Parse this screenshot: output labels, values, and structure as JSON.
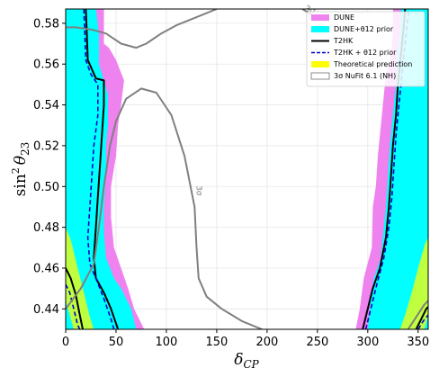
{
  "chart_data": {
    "type": "area",
    "xlabel": "δ_CP",
    "xlabel_main": "δ",
    "xlabel_sub": "CP",
    "ylabel": "sin² θ23",
    "ylabel_main": "sin",
    "ylabel_sup": "2",
    "ylabel_theta": "θ",
    "ylabel_sub": "23",
    "xlim": [
      0,
      360
    ],
    "ylim": [
      0.43,
      0.587
    ],
    "x_ticks": [
      0,
      50,
      100,
      150,
      200,
      250,
      300,
      350
    ],
    "y_ticks": [
      0.44,
      0.46,
      0.48,
      0.5,
      0.52,
      0.54,
      0.56,
      0.58
    ],
    "x_tick_labels": [
      "0",
      "50",
      "100",
      "150",
      "200",
      "250",
      "300",
      "350"
    ],
    "y_tick_labels": [
      "0.44",
      "0.46",
      "0.48",
      "0.50",
      "0.52",
      "0.54",
      "0.56",
      "0.58"
    ],
    "grid": true,
    "legend_position": "top-right",
    "colors": {
      "dune": "#ee82ee",
      "dune_prior": "#00ffff",
      "t2hk": "#000000",
      "t2hk_prior": "#0000cc",
      "theory": "#ffff00",
      "nufit": "#808080"
    },
    "legend": [
      {
        "label": "DUNE",
        "kind": "patch",
        "color": "#ee82ee"
      },
      {
        "label": "DUNE+θ12 prior",
        "kind": "patch",
        "color": "#00ffff"
      },
      {
        "label": "T2HK",
        "kind": "line",
        "color": "#000000"
      },
      {
        "label": "T2HK + θ12 prior",
        "kind": "dashed",
        "color": "#0000cc"
      },
      {
        "label": "Theoretical prediction",
        "kind": "patch",
        "color": "#ffff00"
      },
      {
        "label": "3σ NuFit 6.1 (NH)",
        "kind": "empty",
        "color": "#808080"
      }
    ],
    "contour_labels": [
      "3σ",
      "3σ"
    ],
    "series": [
      {
        "name": "DUNE",
        "regions": [
          [
            [
              0,
              0.43
            ],
            [
              0,
              0.587
            ],
            [
              38,
              0.587
            ],
            [
              38,
              0.57
            ],
            [
              43,
              0.568
            ],
            [
              50,
              0.562
            ],
            [
              58,
              0.552
            ],
            [
              55,
              0.54
            ],
            [
              52,
              0.53
            ],
            [
              50,
              0.515
            ],
            [
              45,
              0.5
            ],
            [
              45,
              0.485
            ],
            [
              48,
              0.47
            ],
            [
              55,
              0.46
            ],
            [
              62,
              0.45
            ],
            [
              68,
              0.44
            ],
            [
              78,
              0.43
            ]
          ],
          [
            [
              288,
              0.43
            ],
            [
              292,
              0.44
            ],
            [
              296,
              0.455
            ],
            [
              304,
              0.47
            ],
            [
              305,
              0.49
            ],
            [
              308,
              0.5
            ],
            [
              310,
              0.515
            ],
            [
              313,
              0.53
            ],
            [
              315,
              0.54
            ],
            [
              318,
              0.555
            ],
            [
              322,
              0.56
            ],
            [
              325,
              0.575
            ],
            [
              325,
              0.587
            ],
            [
              360,
              0.587
            ],
            [
              360,
              0.43
            ]
          ]
        ]
      },
      {
        "name": "DUNE+θ12 prior",
        "regions": [
          [
            [
              0,
              0.43
            ],
            [
              0,
              0.587
            ],
            [
              30,
              0.587
            ],
            [
              33,
              0.575
            ],
            [
              33,
              0.56
            ],
            [
              38,
              0.552
            ],
            [
              42,
              0.545
            ],
            [
              42,
              0.53
            ],
            [
              40,
              0.52
            ],
            [
              40,
              0.505
            ],
            [
              38,
              0.49
            ],
            [
              38,
              0.478
            ],
            [
              40,
              0.465
            ],
            [
              48,
              0.455
            ],
            [
              55,
              0.45
            ],
            [
              65,
              0.44
            ],
            [
              70,
              0.43
            ]
          ],
          [
            [
              300,
              0.43
            ],
            [
              303,
              0.445
            ],
            [
              306,
              0.455
            ],
            [
              313,
              0.465
            ],
            [
              316,
              0.48
            ],
            [
              318,
              0.49
            ],
            [
              320,
              0.505
            ],
            [
              322,
              0.52
            ],
            [
              325,
              0.535
            ],
            [
              328,
              0.55
            ],
            [
              330,
              0.565
            ],
            [
              333,
              0.58
            ],
            [
              333,
              0.587
            ],
            [
              360,
              0.587
            ],
            [
              360,
              0.43
            ]
          ]
        ]
      },
      {
        "name": "Theoretical prediction",
        "regions": [
          [
            [
              0,
              0.48
            ],
            [
              5,
              0.474
            ],
            [
              12,
              0.46
            ],
            [
              18,
              0.448
            ],
            [
              24,
              0.436
            ],
            [
              28,
              0.43
            ],
            [
              8,
              0.43
            ],
            [
              4,
              0.437
            ],
            [
              0,
              0.444
            ]
          ],
          [
            [
              332,
              0.43
            ],
            [
              337,
              0.437
            ],
            [
              343,
              0.447
            ],
            [
              350,
              0.46
            ],
            [
              357,
              0.472
            ],
            [
              360,
              0.475
            ],
            [
              360,
              0.437
            ],
            [
              356,
              0.43
            ]
          ]
        ]
      },
      {
        "name": "T2HK",
        "lines": [
          [
            [
              20,
              0.587
            ],
            [
              21,
              0.575
            ],
            [
              22,
              0.562
            ],
            [
              30,
              0.553
            ],
            [
              38,
              0.552
            ],
            [
              38,
              0.54
            ],
            [
              36,
              0.525
            ],
            [
              34,
              0.51
            ],
            [
              32,
              0.495
            ],
            [
              30,
              0.48
            ],
            [
              28,
              0.465
            ],
            [
              30,
              0.455
            ],
            [
              38,
              0.448
            ],
            [
              45,
              0.44
            ],
            [
              52,
              0.43
            ]
          ],
          [
            [
              0,
              0.46
            ],
            [
              5,
              0.455
            ],
            [
              10,
              0.447
            ],
            [
              14,
              0.437
            ],
            [
              17,
              0.43
            ]
          ],
          [
            [
              295,
              0.43
            ],
            [
              300,
              0.44
            ],
            [
              305,
              0.45
            ],
            [
              312,
              0.46
            ],
            [
              318,
              0.475
            ],
            [
              321,
              0.49
            ],
            [
              323,
              0.505
            ],
            [
              325,
              0.52
            ],
            [
              328,
              0.535
            ],
            [
              330,
              0.55
            ],
            [
              333,
              0.565
            ],
            [
              336,
              0.58
            ],
            [
              337,
              0.587
            ]
          ],
          [
            [
              348,
              0.43
            ],
            [
              353,
              0.435
            ],
            [
              358,
              0.44
            ],
            [
              360,
              0.441
            ]
          ]
        ]
      },
      {
        "name": "T2HK + θ12 prior",
        "lines": [
          [
            [
              18,
              0.587
            ],
            [
              19,
              0.575
            ],
            [
              20,
              0.562
            ],
            [
              25,
              0.555
            ],
            [
              32,
              0.55
            ],
            [
              32,
              0.535
            ],
            [
              28,
              0.52
            ],
            [
              26,
              0.505
            ],
            [
              24,
              0.49
            ],
            [
              22,
              0.475
            ],
            [
              24,
              0.462
            ],
            [
              30,
              0.455
            ],
            [
              38,
              0.445
            ],
            [
              45,
              0.435
            ],
            [
              48,
              0.43
            ]
          ],
          [
            [
              0,
              0.452
            ],
            [
              4,
              0.448
            ],
            [
              8,
              0.44
            ],
            [
              12,
              0.432
            ],
            [
              14,
              0.43
            ]
          ],
          [
            [
              298,
              0.43
            ],
            [
              303,
              0.44
            ],
            [
              309,
              0.452
            ],
            [
              316,
              0.465
            ],
            [
              321,
              0.48
            ],
            [
              324,
              0.495
            ],
            [
              326,
              0.51
            ],
            [
              328,
              0.525
            ],
            [
              331,
              0.54
            ],
            [
              334,
              0.555
            ],
            [
              337,
              0.57
            ],
            [
              340,
              0.583
            ],
            [
              341,
              0.587
            ]
          ],
          [
            [
              350,
              0.43
            ],
            [
              355,
              0.434
            ],
            [
              360,
              0.437
            ]
          ]
        ]
      },
      {
        "name": "3σ NuFit 6.1 (NH)",
        "lines": [
          [
            [
              0,
              0.578
            ],
            [
              10,
              0.578
            ],
            [
              25,
              0.577
            ],
            [
              40,
              0.575
            ],
            [
              55,
              0.57
            ],
            [
              70,
              0.568
            ],
            [
              80,
              0.57
            ],
            [
              95,
              0.575
            ],
            [
              110,
              0.579
            ],
            [
              130,
              0.583
            ],
            [
              150,
              0.587
            ]
          ],
          [
            [
              235,
              0.587
            ],
            [
              245,
              0.584
            ],
            [
              252,
              0.583
            ]
          ],
          [
            [
              0,
              0.44
            ],
            [
              15,
              0.45
            ],
            [
              28,
              0.462
            ],
            [
              33,
              0.48
            ],
            [
              38,
              0.5
            ],
            [
              44,
              0.52
            ],
            [
              50,
              0.532
            ],
            [
              60,
              0.543
            ],
            [
              75,
              0.548
            ],
            [
              90,
              0.546
            ],
            [
              105,
              0.535
            ],
            [
              118,
              0.515
            ],
            [
              128,
              0.49
            ],
            [
              130,
              0.47
            ],
            [
              132,
              0.455
            ],
            [
              140,
              0.446
            ],
            [
              155,
              0.44
            ],
            [
              175,
              0.434
            ],
            [
              195,
              0.43
            ]
          ],
          [
            [
              340,
              0.43
            ],
            [
              348,
              0.436
            ],
            [
              356,
              0.442
            ],
            [
              360,
              0.444
            ]
          ]
        ]
      }
    ]
  }
}
